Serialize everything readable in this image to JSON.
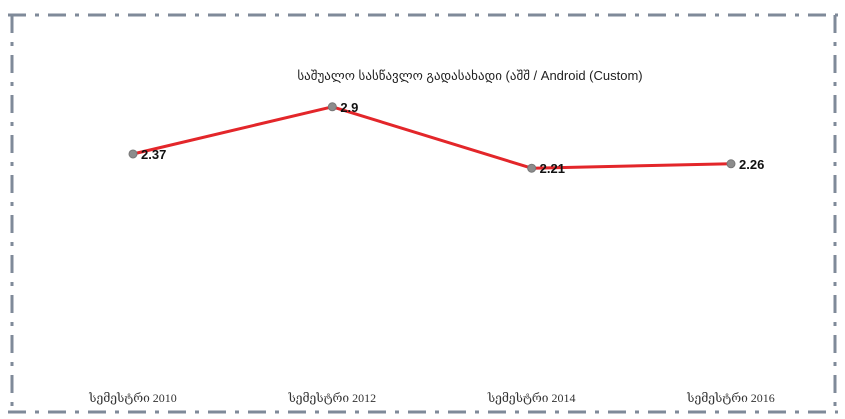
{
  "chart_data": {
    "type": "line",
    "title": "საშუალო სასწავლო გადასახადი (აშშ / Android (Custom)",
    "categories": [
      "სემესტრი 2010",
      "სემესტრი 2012",
      "სემესტრი 2014",
      "სემესტრი 2016"
    ],
    "series": [
      {
        "values": [
          2.37,
          2.9,
          2.21,
          2.26
        ]
      }
    ],
    "data_labels": [
      "2.37",
      "2.9",
      "2.21",
      "2.26"
    ],
    "ylim": [
      0,
      3.65
    ],
    "grid": false,
    "legend": "none",
    "colors": {
      "line": "#e3262a",
      "marker": "#8c8c8c",
      "frame": "#7f8a99"
    }
  }
}
